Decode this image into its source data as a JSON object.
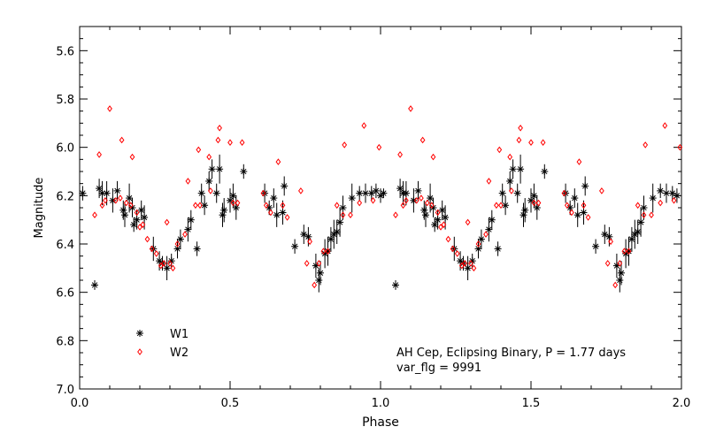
{
  "chart_data": {
    "type": "scatter",
    "xlabel": "Phase",
    "ylabel": "Magnitude",
    "xlim": [
      0.0,
      2.0
    ],
    "ylim": [
      5.5,
      7.0
    ],
    "y_inverted": true,
    "grid": false,
    "legend_placement": "bottom-left",
    "x_ticks": [
      0.0,
      0.5,
      1.0,
      1.5,
      2.0
    ],
    "x_tick_labels": [
      "0.0",
      "0.5",
      "1.0",
      "1.5",
      "2.0"
    ],
    "y_ticks": [
      5.6,
      5.8,
      6.0,
      6.2,
      6.4,
      6.6,
      6.8,
      7.0
    ],
    "y_tick_labels": [
      "5.6",
      "5.8",
      "6.0",
      "6.2",
      "6.4",
      "6.6",
      "6.8",
      "7.0"
    ],
    "annotations": [
      "AH Cep, Eclipsing Binary, P = 1.77 days",
      "var_flg = 9991"
    ],
    "series": [
      {
        "name": "W1",
        "marker": "asterisk",
        "color": "#000000",
        "points": [
          [
            0.01,
            6.19,
            0.03
          ],
          [
            0.05,
            6.57,
            0.02
          ],
          [
            0.065,
            6.17,
            0.04
          ],
          [
            0.075,
            6.19,
            0.05
          ],
          [
            0.09,
            6.19,
            0.05
          ],
          [
            0.11,
            6.22,
            0.05
          ],
          [
            0.125,
            6.18,
            0.04
          ],
          [
            0.145,
            6.26,
            0.04
          ],
          [
            0.15,
            6.28,
            0.05
          ],
          [
            0.165,
            6.21,
            0.06
          ],
          [
            0.175,
            6.25,
            0.04
          ],
          [
            0.18,
            6.32,
            0.03
          ],
          [
            0.19,
            6.3,
            0.04
          ],
          [
            0.205,
            6.26,
            0.04
          ],
          [
            0.215,
            6.29,
            0.05
          ],
          [
            0.245,
            6.42,
            0.05
          ],
          [
            0.265,
            6.47,
            0.04
          ],
          [
            0.275,
            6.48,
            0.03
          ],
          [
            0.29,
            6.5,
            0.05
          ],
          [
            0.305,
            6.47,
            0.03
          ],
          [
            0.325,
            6.42,
            0.04
          ],
          [
            0.335,
            6.38,
            0.04
          ],
          [
            0.36,
            6.34,
            0.05
          ],
          [
            0.37,
            6.3,
            0.04
          ],
          [
            0.39,
            6.42,
            0.03
          ],
          [
            0.405,
            6.19,
            0.04
          ],
          [
            0.415,
            6.24,
            0.04
          ],
          [
            0.43,
            6.14,
            0.04
          ],
          [
            0.44,
            6.09,
            0.04
          ],
          [
            0.455,
            6.19,
            0.04
          ],
          [
            0.465,
            6.09,
            0.06
          ],
          [
            0.475,
            6.28,
            0.05
          ],
          [
            0.48,
            6.26,
            0.05
          ],
          [
            0.5,
            6.22,
            0.05
          ],
          [
            0.51,
            6.2,
            0.05
          ],
          [
            0.52,
            6.25,
            0.05
          ],
          [
            0.545,
            6.1,
            0.03
          ],
          [
            0.615,
            6.19,
            0.04
          ],
          [
            0.63,
            6.25,
            0.03
          ],
          [
            0.645,
            6.21,
            0.04
          ],
          [
            0.655,
            6.28,
            0.05
          ],
          [
            0.675,
            6.27,
            0.05
          ],
          [
            0.68,
            6.16,
            0.04
          ],
          [
            0.715,
            6.41,
            0.03
          ],
          [
            0.745,
            6.36,
            0.04
          ],
          [
            0.76,
            6.37,
            0.04
          ],
          [
            0.785,
            6.49,
            0.05
          ],
          [
            0.795,
            6.55,
            0.05
          ],
          [
            0.8,
            6.52,
            0.05
          ],
          [
            0.815,
            6.44,
            0.06
          ],
          [
            0.825,
            6.43,
            0.06
          ],
          [
            0.835,
            6.38,
            0.05
          ],
          [
            0.845,
            6.36,
            0.06
          ],
          [
            0.855,
            6.35,
            0.05
          ],
          [
            0.865,
            6.31,
            0.06
          ],
          [
            0.875,
            6.25,
            0.05
          ],
          [
            0.905,
            6.21,
            0.06
          ],
          [
            0.93,
            6.19,
            0.03
          ],
          [
            0.95,
            6.19,
            0.04
          ],
          [
            0.97,
            6.19,
            0.03
          ],
          [
            0.985,
            6.18,
            0.03
          ],
          [
            1.0,
            6.2,
            0.03
          ],
          [
            1.01,
            6.19,
            0.02
          ],
          [
            1.05,
            6.57,
            0.02
          ],
          [
            1.065,
            6.17,
            0.04
          ],
          [
            1.075,
            6.19,
            0.05
          ],
          [
            1.085,
            6.19,
            0.05
          ],
          [
            1.11,
            6.22,
            0.05
          ],
          [
            1.125,
            6.18,
            0.04
          ],
          [
            1.145,
            6.26,
            0.04
          ],
          [
            1.15,
            6.28,
            0.05
          ],
          [
            1.165,
            6.21,
            0.06
          ],
          [
            1.175,
            6.25,
            0.04
          ],
          [
            1.18,
            6.32,
            0.03
          ],
          [
            1.19,
            6.3,
            0.04
          ],
          [
            1.205,
            6.26,
            0.04
          ],
          [
            1.215,
            6.29,
            0.05
          ],
          [
            1.245,
            6.42,
            0.05
          ],
          [
            1.265,
            6.47,
            0.04
          ],
          [
            1.275,
            6.48,
            0.03
          ],
          [
            1.29,
            6.5,
            0.05
          ],
          [
            1.305,
            6.47,
            0.03
          ],
          [
            1.325,
            6.42,
            0.04
          ],
          [
            1.335,
            6.38,
            0.04
          ],
          [
            1.36,
            6.34,
            0.05
          ],
          [
            1.37,
            6.3,
            0.04
          ],
          [
            1.39,
            6.42,
            0.03
          ],
          [
            1.405,
            6.19,
            0.04
          ],
          [
            1.415,
            6.24,
            0.04
          ],
          [
            1.43,
            6.14,
            0.04
          ],
          [
            1.44,
            6.09,
            0.04
          ],
          [
            1.455,
            6.19,
            0.04
          ],
          [
            1.465,
            6.09,
            0.06
          ],
          [
            1.475,
            6.28,
            0.05
          ],
          [
            1.48,
            6.26,
            0.05
          ],
          [
            1.5,
            6.22,
            0.05
          ],
          [
            1.51,
            6.2,
            0.05
          ],
          [
            1.52,
            6.25,
            0.05
          ],
          [
            1.545,
            6.1,
            0.03
          ],
          [
            1.615,
            6.19,
            0.04
          ],
          [
            1.63,
            6.25,
            0.03
          ],
          [
            1.645,
            6.21,
            0.04
          ],
          [
            1.655,
            6.28,
            0.05
          ],
          [
            1.675,
            6.27,
            0.05
          ],
          [
            1.68,
            6.16,
            0.04
          ],
          [
            1.715,
            6.41,
            0.03
          ],
          [
            1.745,
            6.36,
            0.04
          ],
          [
            1.76,
            6.37,
            0.04
          ],
          [
            1.785,
            6.49,
            0.05
          ],
          [
            1.795,
            6.55,
            0.05
          ],
          [
            1.8,
            6.52,
            0.05
          ],
          [
            1.815,
            6.44,
            0.06
          ],
          [
            1.825,
            6.43,
            0.06
          ],
          [
            1.835,
            6.38,
            0.05
          ],
          [
            1.845,
            6.36,
            0.06
          ],
          [
            1.855,
            6.35,
            0.05
          ],
          [
            1.865,
            6.31,
            0.06
          ],
          [
            1.875,
            6.25,
            0.05
          ],
          [
            1.905,
            6.21,
            0.06
          ],
          [
            1.93,
            6.18,
            0.03
          ],
          [
            1.95,
            6.19,
            0.04
          ],
          [
            1.97,
            6.19,
            0.03
          ],
          [
            1.985,
            6.2,
            0.03
          ]
        ]
      },
      {
        "name": "W2",
        "marker": "diamond",
        "color": "#ff0000",
        "points": [
          [
            0.05,
            6.28
          ],
          [
            0.065,
            6.03
          ],
          [
            0.075,
            6.24
          ],
          [
            0.085,
            6.22
          ],
          [
            0.1,
            5.84
          ],
          [
            0.12,
            6.22
          ],
          [
            0.135,
            6.21
          ],
          [
            0.14,
            5.97
          ],
          [
            0.155,
            6.23
          ],
          [
            0.17,
            6.24
          ],
          [
            0.175,
            6.04
          ],
          [
            0.19,
            6.27
          ],
          [
            0.2,
            6.33
          ],
          [
            0.21,
            6.32
          ],
          [
            0.225,
            6.38
          ],
          [
            0.24,
            6.42
          ],
          [
            0.255,
            6.44
          ],
          [
            0.27,
            6.49
          ],
          [
            0.28,
            6.48
          ],
          [
            0.29,
            6.31
          ],
          [
            0.3,
            6.48
          ],
          [
            0.31,
            6.5
          ],
          [
            0.325,
            6.4
          ],
          [
            0.35,
            6.36
          ],
          [
            0.36,
            6.14
          ],
          [
            0.385,
            6.24
          ],
          [
            0.395,
            6.01
          ],
          [
            0.4,
            6.24
          ],
          [
            0.43,
            6.04
          ],
          [
            0.435,
            6.18
          ],
          [
            0.46,
            5.97
          ],
          [
            0.465,
            5.92
          ],
          [
            0.5,
            5.98
          ],
          [
            0.51,
            6.23
          ],
          [
            0.525,
            6.23
          ],
          [
            0.54,
            5.98
          ],
          [
            0.61,
            6.19
          ],
          [
            0.62,
            6.24
          ],
          [
            0.635,
            6.27
          ],
          [
            0.66,
            6.06
          ],
          [
            0.675,
            6.24
          ],
          [
            0.69,
            6.29
          ],
          [
            0.735,
            6.18
          ],
          [
            0.755,
            6.48
          ],
          [
            0.765,
            6.39
          ],
          [
            0.78,
            6.57
          ],
          [
            0.795,
            6.48
          ],
          [
            0.81,
            6.43
          ],
          [
            0.825,
            6.43
          ],
          [
            0.855,
            6.24
          ],
          [
            0.875,
            6.28
          ],
          [
            0.88,
            5.99
          ],
          [
            0.9,
            6.28
          ],
          [
            0.93,
            6.23
          ],
          [
            0.945,
            5.91
          ],
          [
            0.975,
            6.22
          ],
          [
            0.995,
            6.0
          ],
          [
            1.05,
            6.28
          ],
          [
            1.065,
            6.03
          ],
          [
            1.075,
            6.24
          ],
          [
            1.085,
            6.22
          ],
          [
            1.1,
            5.84
          ],
          [
            1.12,
            6.22
          ],
          [
            1.135,
            6.21
          ],
          [
            1.14,
            5.97
          ],
          [
            1.155,
            6.23
          ],
          [
            1.17,
            6.24
          ],
          [
            1.175,
            6.04
          ],
          [
            1.19,
            6.27
          ],
          [
            1.2,
            6.33
          ],
          [
            1.21,
            6.32
          ],
          [
            1.225,
            6.38
          ],
          [
            1.24,
            6.42
          ],
          [
            1.255,
            6.44
          ],
          [
            1.27,
            6.49
          ],
          [
            1.28,
            6.48
          ],
          [
            1.29,
            6.31
          ],
          [
            1.3,
            6.48
          ],
          [
            1.31,
            6.5
          ],
          [
            1.325,
            6.4
          ],
          [
            1.35,
            6.36
          ],
          [
            1.36,
            6.14
          ],
          [
            1.385,
            6.24
          ],
          [
            1.395,
            6.01
          ],
          [
            1.4,
            6.24
          ],
          [
            1.43,
            6.04
          ],
          [
            1.435,
            6.18
          ],
          [
            1.46,
            5.97
          ],
          [
            1.465,
            5.92
          ],
          [
            1.5,
            5.98
          ],
          [
            1.51,
            6.23
          ],
          [
            1.525,
            6.23
          ],
          [
            1.54,
            5.98
          ],
          [
            1.61,
            6.19
          ],
          [
            1.62,
            6.24
          ],
          [
            1.635,
            6.27
          ],
          [
            1.66,
            6.06
          ],
          [
            1.675,
            6.24
          ],
          [
            1.69,
            6.29
          ],
          [
            1.735,
            6.18
          ],
          [
            1.755,
            6.48
          ],
          [
            1.765,
            6.39
          ],
          [
            1.78,
            6.57
          ],
          [
            1.795,
            6.48
          ],
          [
            1.81,
            6.43
          ],
          [
            1.825,
            6.43
          ],
          [
            1.855,
            6.24
          ],
          [
            1.875,
            6.28
          ],
          [
            1.88,
            5.99
          ],
          [
            1.9,
            6.28
          ],
          [
            1.93,
            6.23
          ],
          [
            1.945,
            5.91
          ],
          [
            1.975,
            6.22
          ],
          [
            1.995,
            6.0
          ]
        ]
      }
    ]
  }
}
